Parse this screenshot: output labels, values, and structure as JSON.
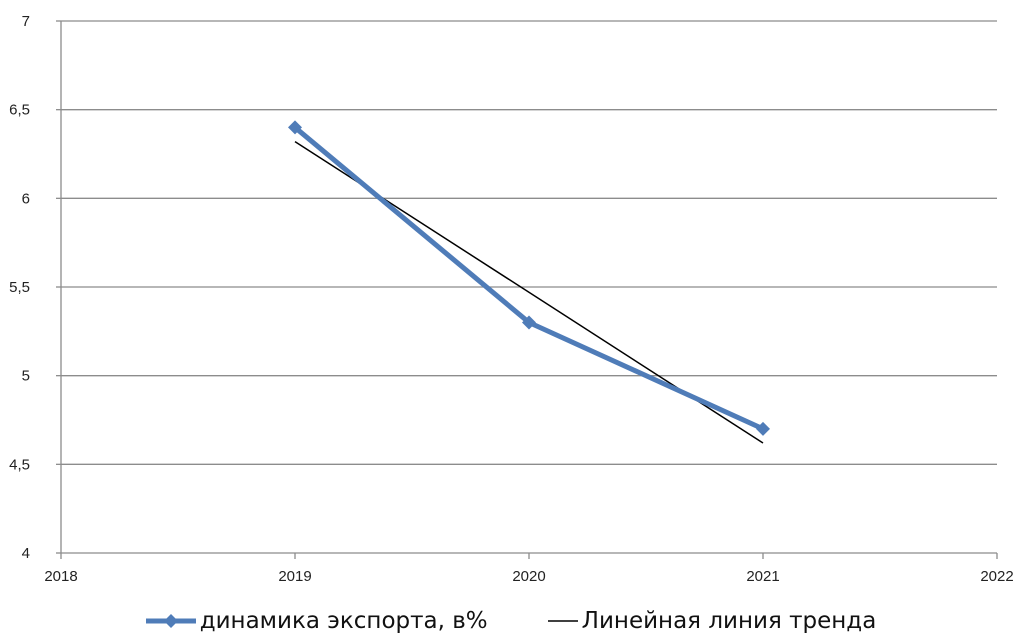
{
  "chart_data": {
    "type": "line",
    "x": [
      2019,
      2020,
      2021
    ],
    "xlim": [
      2018,
      2022
    ],
    "ylim": [
      4,
      7
    ],
    "x_ticks": [
      "2018",
      "2019",
      "2020",
      "2021",
      "2022"
    ],
    "y_ticks": [
      "4",
      "4,5",
      "5",
      "5,5",
      "6",
      "6,5",
      "7"
    ],
    "x_tick_values": [
      2018,
      2019,
      2020,
      2021,
      2022
    ],
    "y_tick_values": [
      4,
      4.5,
      5,
      5.5,
      6,
      6.5,
      7
    ],
    "grid": true,
    "legend_position": "bottom",
    "series": [
      {
        "name": "динамика экспорта, в%",
        "values": [
          6.4,
          5.3,
          4.7
        ],
        "color": "#4F7CB8",
        "marker": "diamond"
      }
    ],
    "trendline": {
      "name": "Линейная линия тренда",
      "type": "linear",
      "x": [
        2019,
        2021
      ],
      "values": [
        6.32,
        4.62
      ],
      "color": "#000000"
    }
  }
}
